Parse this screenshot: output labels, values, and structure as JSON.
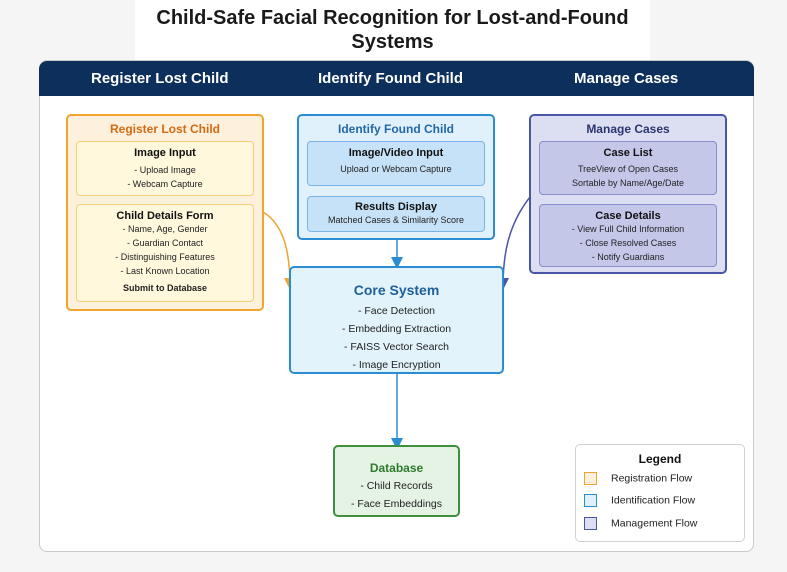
{
  "title": "Child-Safe Facial Recognition for Lost-and-Found Systems",
  "header_tabs": [
    "Register Lost Child",
    "Identify Found Child",
    "Manage Cases"
  ],
  "register": {
    "title": "Register Lost Child",
    "image_input": {
      "title": "Image Input",
      "lines": [
        "- Upload Image",
        "- Webcam Capture"
      ]
    },
    "details_form": {
      "title": "Child Details Form",
      "lines": [
        "- Name, Age, Gender",
        "- Guardian Contact",
        "- Distinguishing Features",
        "- Last Known Location"
      ],
      "submit": "Submit to Database"
    }
  },
  "identify": {
    "title": "Identify Found Child",
    "media_input": {
      "title": "Image/Video Input",
      "lines": [
        "Upload or Webcam Capture"
      ]
    },
    "results": {
      "title": "Results Display",
      "lines": [
        "Matched Cases & Similarity Score"
      ]
    }
  },
  "manage": {
    "title": "Manage Cases",
    "case_list": {
      "title": "Case List",
      "lines": [
        "TreeView of Open Cases",
        "Sortable by Name/Age/Date"
      ]
    },
    "case_details": {
      "title": "Case Details",
      "lines": [
        "- View Full Child Information",
        "- Close Resolved Cases",
        "- Notify Guardians"
      ]
    }
  },
  "core": {
    "title": "Core System",
    "lines": [
      "- Face Detection",
      "- Embedding Extraction",
      "- FAISS Vector Search",
      "- Image Encryption"
    ]
  },
  "database": {
    "title": "Database",
    "lines": [
      "- Child Records",
      "- Face Embeddings"
    ]
  },
  "legend": {
    "title": "Legend",
    "items": [
      {
        "label": "Registration Flow",
        "fill": "#fdf1de",
        "stroke": "#f2a330"
      },
      {
        "label": "Identification Flow",
        "fill": "#e1f1fb",
        "stroke": "#2b8dd1"
      },
      {
        "label": "Management Flow",
        "fill": "#dcdff2",
        "stroke": "#4a56a8"
      }
    ]
  },
  "colors": {
    "header": "#0d2f5c",
    "registration": "#f2a330",
    "identification": "#2b8dd1",
    "management": "#4a56a8",
    "database": "#3f8f3f"
  }
}
